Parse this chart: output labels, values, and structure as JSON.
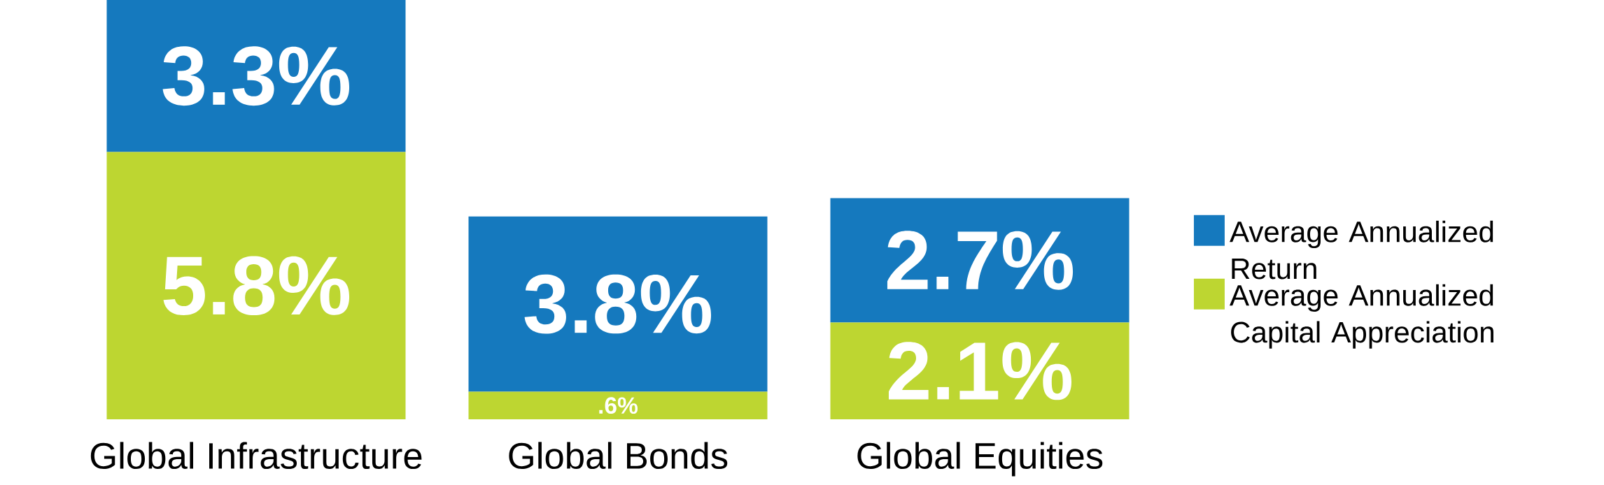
{
  "chart_data": {
    "type": "bar",
    "stacked": true,
    "categories": [
      "Global Infrastructure",
      "Global Bonds",
      "Global Equities"
    ],
    "series": [
      {
        "name": "Average Annualized Capital Appreciation",
        "color": "#bdd631",
        "values": [
          5.8,
          0.6,
          2.1
        ],
        "value_labels": [
          "5.8%",
          ".6%",
          "2.1%"
        ]
      },
      {
        "name": "Average Annualized Return",
        "color": "#1579be",
        "values": [
          3.3,
          3.8,
          2.7
        ],
        "value_labels": [
          "3.3%",
          "3.8%",
          "2.7%"
        ]
      }
    ],
    "legend": "right"
  }
}
